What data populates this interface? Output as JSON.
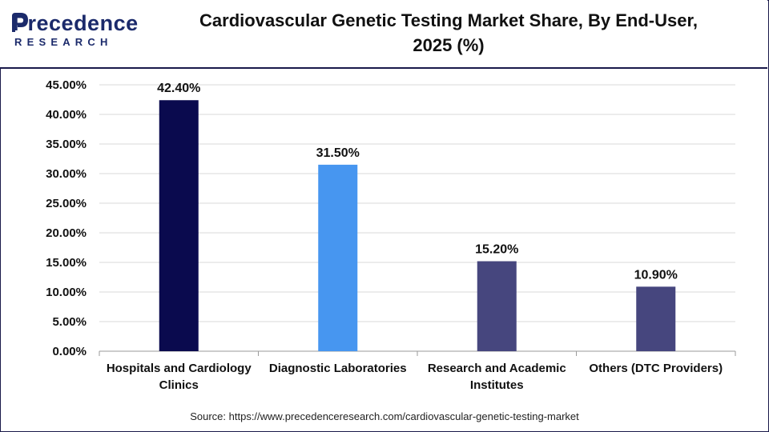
{
  "brand": {
    "name_main": "Precedence",
    "name_sub": "RESEARCH",
    "color": "#1b2a6b"
  },
  "title_line1": "Cardiovascular Genetic Testing Market Share, By End-User,",
  "title_line2": "2025 (%)",
  "source": "Source: https://www.precedenceresearch.com/cardiovascular-genetic-testing-market",
  "chart_data": {
    "type": "bar",
    "categories": [
      [
        "Hospitals and Cardiology",
        "Clinics"
      ],
      [
        "Diagnostic Laboratories"
      ],
      [
        "Research and Academic",
        "Institutes"
      ],
      [
        "Others (DTC Providers)"
      ]
    ],
    "values": [
      42.4,
      31.5,
      15.2,
      10.9
    ],
    "value_labels": [
      "42.40%",
      "31.50%",
      "15.20%",
      "10.90%"
    ],
    "colors": [
      "#0a0a4e",
      "#4796f0",
      "#46467e",
      "#46467e"
    ],
    "ylim": [
      0,
      45
    ],
    "yticks": [
      0,
      5,
      10,
      15,
      20,
      25,
      30,
      35,
      40,
      45
    ],
    "ytick_labels": [
      "0.00%",
      "5.00%",
      "10.00%",
      "15.00%",
      "20.00%",
      "25.00%",
      "30.00%",
      "35.00%",
      "40.00%",
      "45.00%"
    ],
    "grid": true,
    "legend": "none"
  }
}
